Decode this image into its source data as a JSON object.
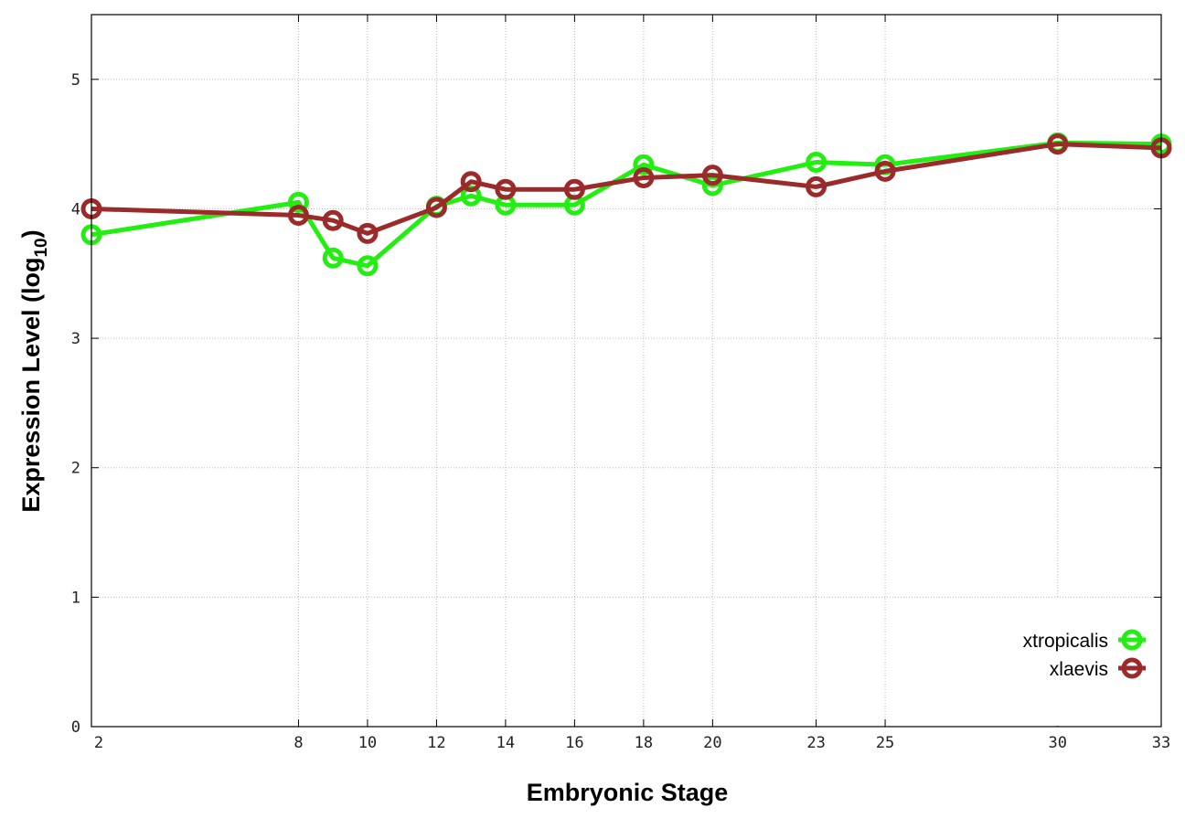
{
  "chart_data": {
    "type": "line",
    "title": "",
    "xlabel": "Embryonic Stage",
    "ylabel_main": "Expression Level (log",
    "ylabel_sub": "10",
    "ylabel_close": ")",
    "x": [
      2,
      8,
      9,
      10,
      12,
      13,
      14,
      16,
      18,
      20,
      23,
      25,
      30,
      33
    ],
    "x_tick_labels": [
      "2",
      "8",
      "10",
      "12",
      "14",
      "16",
      "18",
      "20",
      "23",
      "25",
      "30",
      "33"
    ],
    "x_tick_values": [
      2,
      8,
      10,
      12,
      14,
      16,
      18,
      20,
      23,
      25,
      30,
      33
    ],
    "y_tick_labels": [
      "0",
      "1",
      "2",
      "3",
      "4",
      "5"
    ],
    "y_tick_values": [
      0,
      1,
      2,
      3,
      4,
      5
    ],
    "xlim": [
      2,
      33
    ],
    "ylim": [
      0,
      5.5
    ],
    "grid": true,
    "legend_placement": "bottom-right",
    "series": [
      {
        "name": "xtropicalis",
        "color": "#22ee11",
        "values": [
          3.8,
          4.05,
          3.62,
          3.56,
          4.02,
          4.1,
          4.03,
          4.03,
          4.34,
          4.18,
          4.36,
          4.34,
          4.51,
          4.5
        ]
      },
      {
        "name": "xlaevis",
        "color": "#9b2a2a",
        "values": [
          4.0,
          3.95,
          3.91,
          3.81,
          4.01,
          4.21,
          4.15,
          4.15,
          4.24,
          4.26,
          4.17,
          4.29,
          4.5,
          4.47
        ]
      }
    ]
  }
}
